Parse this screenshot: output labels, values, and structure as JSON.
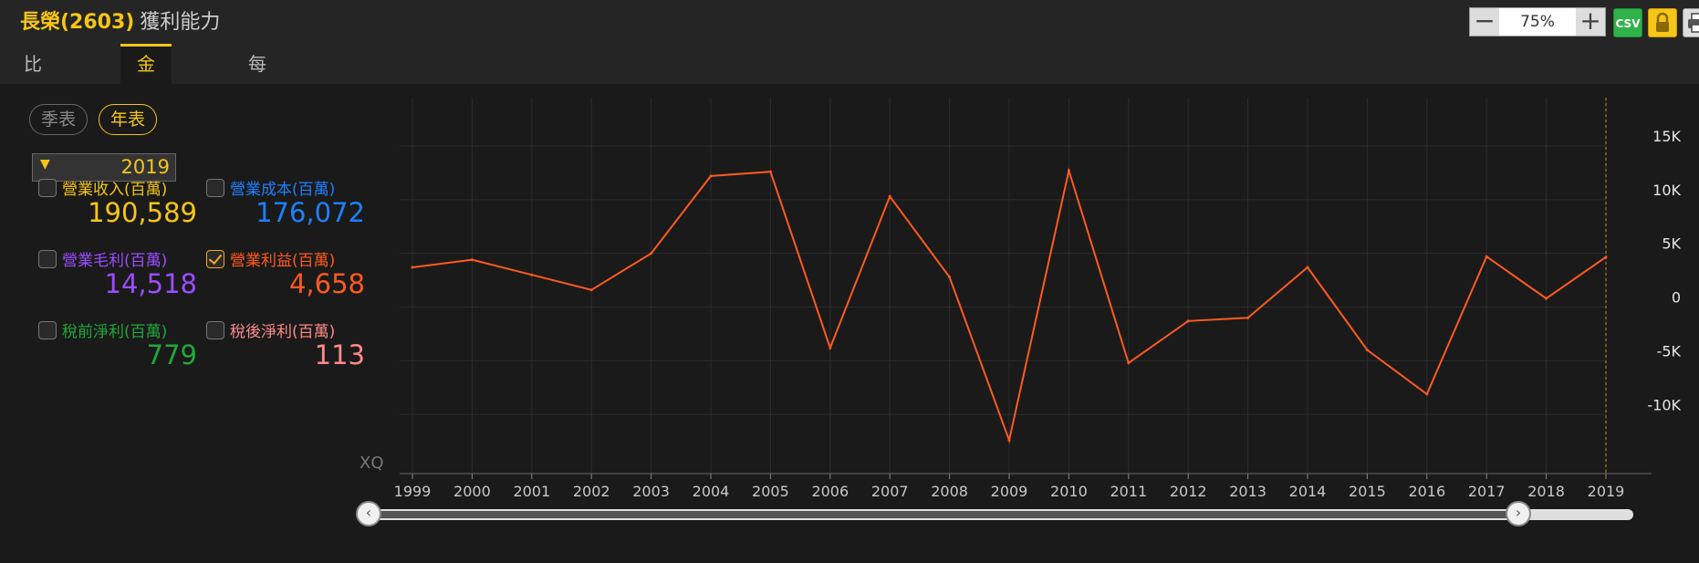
{
  "header": {
    "stock": "長榮(2603)",
    "subtitle": "獲利能力"
  },
  "tabs": [
    {
      "label": "比重分析",
      "active": false
    },
    {
      "label": "金額分析",
      "active": true
    },
    {
      "label": "每股盈餘",
      "active": false
    }
  ],
  "toolbar": {
    "zoom_minus": "−",
    "zoom_value": "75%",
    "zoom_plus": "+",
    "csv_label": "CSV",
    "lock_icon": "lock-icon",
    "print_icon": "printer-icon"
  },
  "period": {
    "quarterly": "季表",
    "yearly": "年表",
    "active": "yearly"
  },
  "year_select": {
    "value": "2019"
  },
  "metrics": [
    {
      "label": "營業收入(百萬)",
      "value": "190,589",
      "color": "#f5c518",
      "checked": false
    },
    {
      "label": "營業成本(百萬)",
      "value": "176,072",
      "color": "#1e7fff",
      "checked": false
    },
    {
      "label": "營業毛利(百萬)",
      "value": "14,518",
      "color": "#9b4dff",
      "checked": false
    },
    {
      "label": "營業利益(百萬)",
      "value": "4,658",
      "color": "#ff5a1f",
      "checked": true
    },
    {
      "label": "稅前淨利(百萬)",
      "value": "779",
      "color": "#22a83a",
      "checked": false
    },
    {
      "label": "稅後淨利(百萬)",
      "value": "113",
      "color": "#ff8a8a",
      "checked": false
    }
  ],
  "chart_data": {
    "type": "line",
    "watermark": "XQ",
    "x": [
      "1999",
      "2000",
      "2001",
      "2002",
      "2003",
      "2004",
      "2005",
      "2006",
      "2007",
      "2008",
      "2009",
      "2010",
      "2011",
      "2012",
      "2013",
      "2014",
      "2015",
      "2016",
      "2017",
      "2018",
      "2019"
    ],
    "series": [
      {
        "color": "#ff5a1f",
        "values": [
          3700,
          4400,
          3000,
          1600,
          5000,
          12200,
          12600,
          -3800,
          10300,
          2800,
          -12400,
          12700,
          -5200,
          -1300,
          -1000,
          3700,
          -4000,
          -8100,
          4700,
          800,
          4658
        ]
      }
    ],
    "y_ticks": [
      {
        "value": 15000,
        "label": "15K"
      },
      {
        "value": 10000,
        "label": "10K"
      },
      {
        "value": 5000,
        "label": "5K"
      },
      {
        "value": 0,
        "label": "0"
      },
      {
        "value": -5000,
        "label": "-5K"
      },
      {
        "value": -10000,
        "label": "-10K"
      }
    ],
    "ylim": [
      -15500,
      19500
    ],
    "grid": true,
    "highlight_x": "2019"
  },
  "scroll": {
    "left_label": "‹",
    "right_label": "›"
  }
}
